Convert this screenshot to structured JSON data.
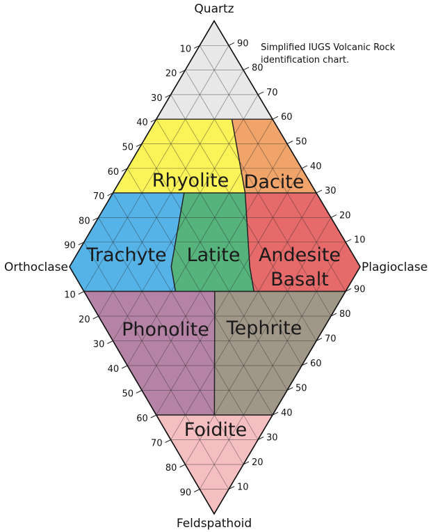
{
  "vertices": {
    "top": "Quartz",
    "left": "Orthoclase",
    "right": "Plagioclase",
    "bottom": "Feldspathoid"
  },
  "note_lines": [
    "Simplified IUGS Volcanic Rock",
    "identification chart."
  ],
  "fields": {
    "quartz": "",
    "rhyolite": "Rhyolite",
    "dacite": "Dacite",
    "trachyte": "Trachyte",
    "latite": "Latite",
    "andesite": "Andesite",
    "basalt": "Basalt",
    "phonolite": "Phonolite",
    "tephrite": "Tephrite",
    "foidite": "Foidite"
  },
  "colors": {
    "quartz": "#e8e8e8",
    "rhyolite": "#fbf459",
    "dacite": "#f0a46a",
    "trachyte": "#55b3e8",
    "latite": "#56b37c",
    "andesite_basalt": "#e66a6a",
    "phonolite": "#b583a6",
    "tephrite": "#a09788",
    "foidite": "#f5bfc2"
  },
  "ticks": {
    "upper_left": [
      "10",
      "20",
      "30",
      "40",
      "50",
      "60",
      "70",
      "80",
      "90"
    ],
    "upper_right": [
      "90",
      "80",
      "70",
      "60",
      "50",
      "40",
      "30",
      "20",
      "10"
    ],
    "lower_left": [
      "10",
      "20",
      "30",
      "40",
      "50",
      "60",
      "70",
      "80",
      "90"
    ],
    "lower_right": [
      "90",
      "80",
      "70",
      "60",
      "50",
      "40",
      "30",
      "20",
      "10"
    ]
  }
}
